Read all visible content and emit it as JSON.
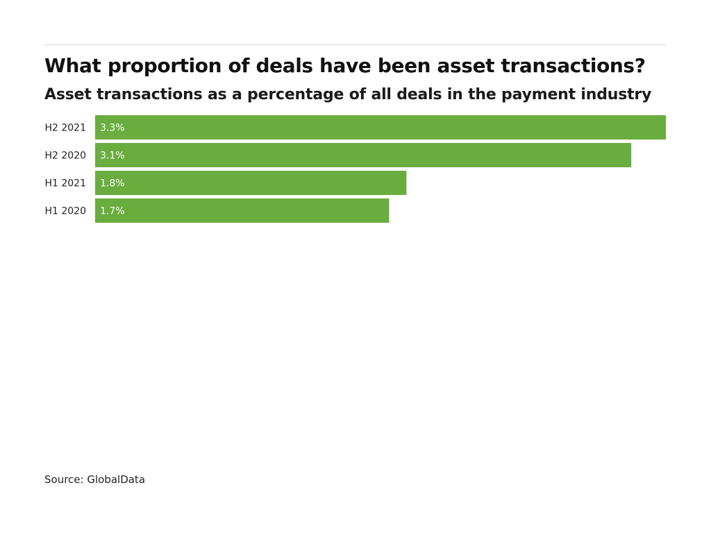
{
  "header": {
    "title": "What proportion of deals have been asset transactions?",
    "subtitle": "Asset transactions as a percentage of all deals in the payment industry"
  },
  "footer": {
    "source": "Source: GlobalData"
  },
  "colors": {
    "bar": "#69ad3e",
    "value_label": "#ffffff",
    "category_label": "#222222"
  },
  "chart_data": {
    "type": "bar",
    "orientation": "horizontal",
    "categories": [
      "H2 2021",
      "H2 2020",
      "H1 2021",
      "H1 2020"
    ],
    "values": [
      3.3,
      3.1,
      1.8,
      1.7
    ],
    "value_labels": [
      "3.3%",
      "3.1%",
      "1.8%",
      "1.7%"
    ],
    "xlim": [
      0,
      3.3
    ],
    "grid": false,
    "legend": "none"
  }
}
